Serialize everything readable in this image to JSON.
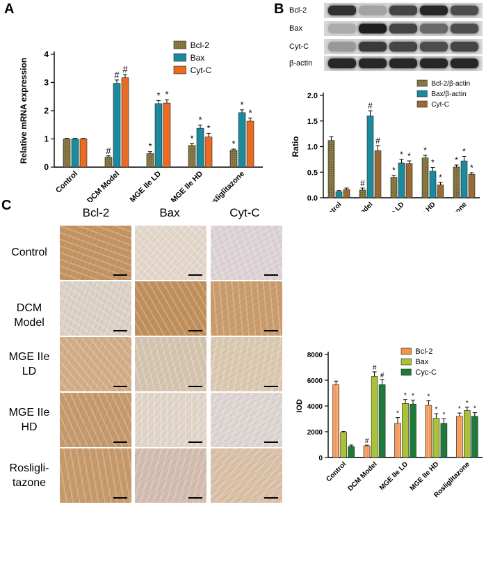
{
  "panels": {
    "a": "A",
    "b": "B",
    "c": "C"
  },
  "blot": {
    "rows": [
      {
        "label": "Bcl-2",
        "intensities": [
          0.85,
          0.25,
          0.75,
          0.9,
          0.7
        ]
      },
      {
        "label": "Bax",
        "intensities": [
          0.2,
          0.95,
          0.75,
          0.55,
          0.7
        ]
      },
      {
        "label": "Cyt-C",
        "intensities": [
          0.3,
          0.8,
          0.75,
          0.7,
          0.75
        ]
      },
      {
        "label": "β-actin",
        "intensities": [
          0.9,
          0.9,
          0.9,
          0.9,
          0.9
        ]
      }
    ]
  },
  "ihc": {
    "columns": [
      "Bcl-2",
      "Bax",
      "Cyt-C"
    ],
    "rows": [
      {
        "label": "Control",
        "tones": [
          "#c49463",
          "#e4d8cc",
          "#ddd3d6"
        ]
      },
      {
        "label": "DCM Model",
        "tones": [
          "#dcd1c6",
          "#c0905c",
          "#ca9d6c"
        ]
      },
      {
        "label": "MGE IIe LD",
        "tones": [
          "#d2ad88",
          "#d5c5b0",
          "#dcc9b1"
        ]
      },
      {
        "label": "MGE IIe HD",
        "tones": [
          "#c59a6c",
          "#e1d6c9",
          "#ddd5d2"
        ]
      },
      {
        "label": "Rosligli-tazone",
        "tones": [
          "#c69a6b",
          "#d3bdb0",
          "#d9c0a6"
        ]
      }
    ]
  },
  "chart_data": [
    {
      "type": "bar",
      "ylabel": "Relative mRNA expression",
      "ylim": [
        0,
        4
      ],
      "yticks": [
        0,
        1,
        2,
        3,
        4
      ],
      "categories": [
        "Control",
        "DCM Model",
        "MGE IIe LD",
        "MGE IIe HD",
        "Rosliglitazone"
      ],
      "legend_position": "top-right",
      "series": [
        {
          "name": "Bcl-2",
          "color": "#8a7b45",
          "values": [
            1.0,
            0.35,
            0.48,
            0.77,
            0.6
          ],
          "errors": [
            0.02,
            0.05,
            0.07,
            0.06,
            0.04
          ],
          "marks": [
            "",
            "#",
            "*",
            "*",
            "*"
          ]
        },
        {
          "name": "Bax",
          "color": "#1a8a9c",
          "values": [
            1.0,
            2.97,
            2.25,
            1.38,
            1.93
          ],
          "errors": [
            0.02,
            0.12,
            0.11,
            0.11,
            0.1
          ],
          "marks": [
            "",
            "#",
            "*",
            "*",
            "*"
          ]
        },
        {
          "name": "Cyt-C",
          "color": "#e86c23",
          "values": [
            1.0,
            3.17,
            2.27,
            1.07,
            1.63
          ],
          "errors": [
            0.02,
            0.11,
            0.12,
            0.13,
            0.11
          ],
          "marks": [
            "",
            "#",
            "*",
            "*",
            "*"
          ]
        }
      ]
    },
    {
      "type": "bar",
      "ylabel": "Ratio",
      "ylim": [
        0,
        2.0
      ],
      "yticks": [
        "0.0",
        "0.5",
        "1.0",
        "1.5",
        "2.0"
      ],
      "categories": [
        "Control",
        "DCM Model",
        "MGE IIe LD",
        "MGE IIe HD",
        "Rosliglitazone"
      ],
      "legend_position": "top-right",
      "series": [
        {
          "name": "Bcl-2/β-actin",
          "color": "#8a7b45",
          "values": [
            1.12,
            0.15,
            0.4,
            0.78,
            0.6
          ],
          "errors": [
            0.07,
            0.04,
            0.04,
            0.05,
            0.04
          ],
          "marks": [
            "",
            "#",
            "*",
            "*",
            "*"
          ]
        },
        {
          "name": "Bax/β-actin",
          "color": "#1a8a9c",
          "values": [
            0.12,
            1.6,
            0.68,
            0.52,
            0.72
          ],
          "errors": [
            0.02,
            0.1,
            0.07,
            0.07,
            0.09
          ],
          "marks": [
            "",
            "#",
            "*",
            "*",
            "*"
          ]
        },
        {
          "name": "Cyt-C",
          "color": "#9a6a36",
          "values": [
            0.16,
            0.92,
            0.67,
            0.25,
            0.46
          ],
          "errors": [
            0.03,
            0.1,
            0.05,
            0.05,
            0.03
          ],
          "marks": [
            "",
            "#",
            "*",
            "*",
            "*"
          ]
        }
      ]
    },
    {
      "type": "bar",
      "ylabel": "IOD",
      "ylim": [
        0,
        8000
      ],
      "yticks": [
        0,
        2000,
        4000,
        6000,
        8000
      ],
      "categories": [
        "Control",
        "DCM Model",
        "MGE IIe LD",
        "MGE IIe HD",
        "Rosliglitazone"
      ],
      "legend_position": "top-right",
      "series": [
        {
          "name": "Bcl-2",
          "color": "#f4934f",
          "values": [
            5650,
            900,
            2650,
            4050,
            3200
          ],
          "errors": [
            280,
            60,
            450,
            350,
            250
          ],
          "marks": [
            "",
            "#",
            "*",
            "*",
            "*"
          ]
        },
        {
          "name": "Bax",
          "color": "#a8c23a",
          "values": [
            1950,
            6300,
            4200,
            3050,
            3650
          ],
          "errors": [
            80,
            350,
            300,
            350,
            250
          ],
          "marks": [
            "",
            "#",
            "*",
            "*",
            "*"
          ]
        },
        {
          "name": "Cyc-C",
          "color": "#1e7a3a",
          "values": [
            850,
            5650,
            4150,
            2650,
            3200
          ],
          "errors": [
            120,
            400,
            300,
            350,
            280
          ],
          "marks": [
            "",
            "#",
            "*",
            "*",
            "*"
          ]
        }
      ]
    }
  ]
}
